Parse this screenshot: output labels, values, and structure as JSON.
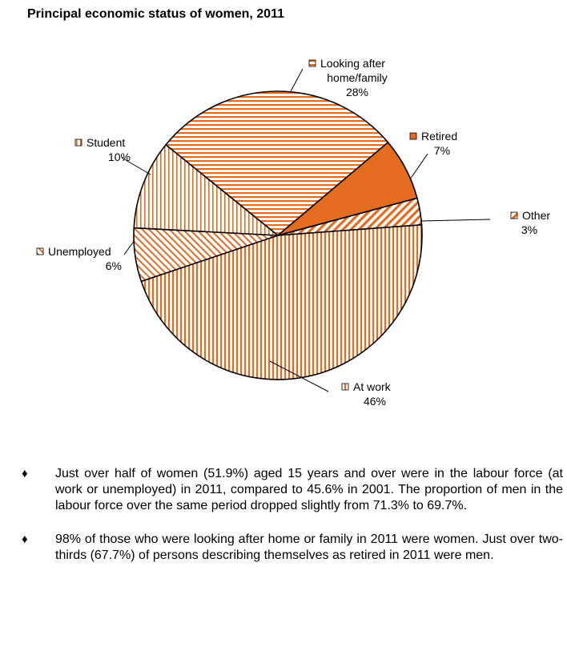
{
  "title": "Principal economic status of women, 2011",
  "chart_data": {
    "type": "pie",
    "title": "Principal economic status of women, 2011",
    "start": "Other",
    "slices": [
      {
        "name": "Other",
        "value": 3,
        "label_lines": [
          "Other"
        ],
        "pct": "3%",
        "color": "#e36c1f",
        "pattern": "diag-right"
      },
      {
        "name": "At work",
        "value": 46,
        "label_lines": [
          "At work"
        ],
        "pct": "46%",
        "color": "#e36c1f",
        "pattern": "vertical"
      },
      {
        "name": "Unemployed",
        "value": 6,
        "label_lines": [
          "Unemployed"
        ],
        "pct": "6%",
        "color": "#e36c1f",
        "pattern": "diag-left"
      },
      {
        "name": "Student",
        "value": 10,
        "label_lines": [
          "Student"
        ],
        "pct": "10%",
        "color": "#e36c1f",
        "pattern": "vertical-light"
      },
      {
        "name": "Looking after home/family",
        "value": 28,
        "label_lines": [
          "Looking after",
          "home/family"
        ],
        "pct": "28%",
        "color": "#e36c1f",
        "pattern": "horizontal"
      },
      {
        "name": "Retired",
        "value": 7,
        "label_lines": [
          "Retired"
        ],
        "pct": "7%",
        "color": "#e36c1f",
        "pattern": "solid"
      }
    ]
  },
  "bullets": [
    {
      "marker": "♦",
      "text": "Just over half of women (51.9%) aged 15 years and over were in the labour force (at work or unemployed) in 2011, compared to 45.6% in 2001. The proportion of men in the labour force over the same period dropped slightly from 71.3% to 69.7%."
    },
    {
      "marker": "♦",
      "text": "98% of those who were looking after home or family in 2011 were women. Just over two-thirds (67.7%) of persons describing themselves as retired in 2011 were men."
    }
  ]
}
